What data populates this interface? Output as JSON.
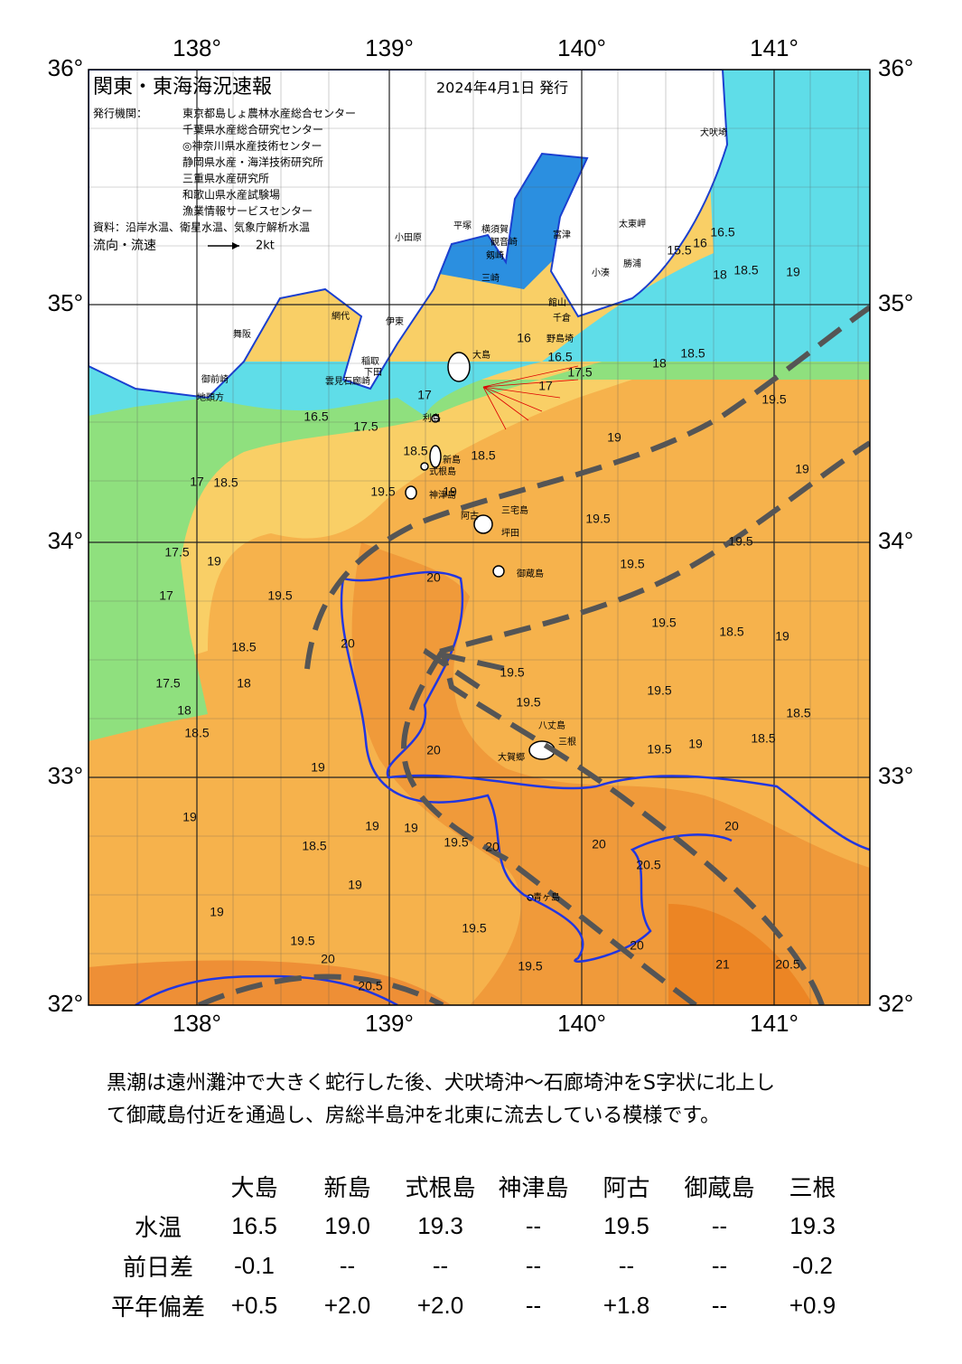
{
  "header": {
    "title": "関東・東海海況速報",
    "date": "2024年4月1日 発行",
    "issuer_label": "発行機関：",
    "issuers": [
      "東京都島しょ農林水産総合センター",
      "千葉県水産総合研究センター",
      "◎神奈川県水産技術センター",
      "静岡県水産・海洋技術研究所",
      "三重県水産研究所",
      "和歌山県水産試験場",
      "漁業情報サービスセンター"
    ],
    "source": "資料：沿岸水温、衛星水温、気象庁解析水温",
    "flow": "流向・流速",
    "flow_scale": "2kt"
  },
  "map": {
    "lon_labels": [
      "138°",
      "139°",
      "140°",
      "141°"
    ],
    "lat_labels": [
      "36°",
      "35°",
      "34°",
      "33°",
      "32°"
    ],
    "places": [
      "犬吠埼",
      "太東岬",
      "勝浦",
      "小湊",
      "館山",
      "千倉",
      "野島埼",
      "富津",
      "横須賀",
      "観音崎",
      "剱崎",
      "三崎",
      "平塚",
      "小田原",
      "伊東",
      "網代",
      "稲取",
      "下田",
      "石廊崎",
      "雲見",
      "舞阪",
      "御前崎",
      "地頭方",
      "大島",
      "利島",
      "新島",
      "式根島",
      "神津島",
      "三宅島",
      "阿古",
      "坪田",
      "御蔵島",
      "八丈島",
      "三根",
      "大賀郷",
      "青ヶ島"
    ],
    "contour_labels": [
      "15.5",
      "16",
      "16.5",
      "18",
      "18.5",
      "19",
      "16",
      "16.5",
      "17",
      "17.5",
      "18",
      "18.5",
      "19.5",
      "19",
      "16.5",
      "17.5",
      "17",
      "18.5",
      "18.5",
      "19",
      "19.5",
      "17",
      "18.5",
      "17.5",
      "19",
      "17",
      "19.5",
      "20",
      "19.5",
      "19.5",
      "19.5",
      "18.5",
      "19",
      "19.5",
      "19",
      "18.5",
      "18",
      "17.5",
      "18",
      "18.5",
      "20",
      "19.5",
      "19.5",
      "19.5",
      "18.5",
      "20",
      "19",
      "19.5",
      "19",
      "18.5",
      "19",
      "18.5",
      "19",
      "19",
      "19.5",
      "20",
      "20",
      "20",
      "20.5",
      "19",
      "19",
      "19.5",
      "19.5",
      "20",
      "19.5",
      "20",
      "21",
      "20.5",
      "20.5"
    ]
  },
  "summary": [
    "黒潮は遠州灘沖で大きく蛇行した後、犬吠埼沖～石廊埼沖をS字状に北上し",
    "て御蔵島付近を通過し、房総半島沖を北東に流去している模様です。"
  ],
  "table": {
    "columns": [
      "大島",
      "新島",
      "式根島",
      "神津島",
      "阿古",
      "御蔵島",
      "三根"
    ],
    "rows": [
      {
        "label": "水温",
        "cells": [
          "16.5",
          "19.0",
          "19.3",
          "--",
          "19.5",
          "--",
          "19.3"
        ]
      },
      {
        "label": "前日差",
        "cells": [
          "-0.1",
          "--",
          "--",
          "--",
          "--",
          "--",
          "-0.2"
        ]
      },
      {
        "label": "平年偏差",
        "cells": [
          "+0.5",
          "+2.0",
          "+2.0",
          "--",
          "+1.8",
          "--",
          "+0.9"
        ]
      }
    ]
  }
}
